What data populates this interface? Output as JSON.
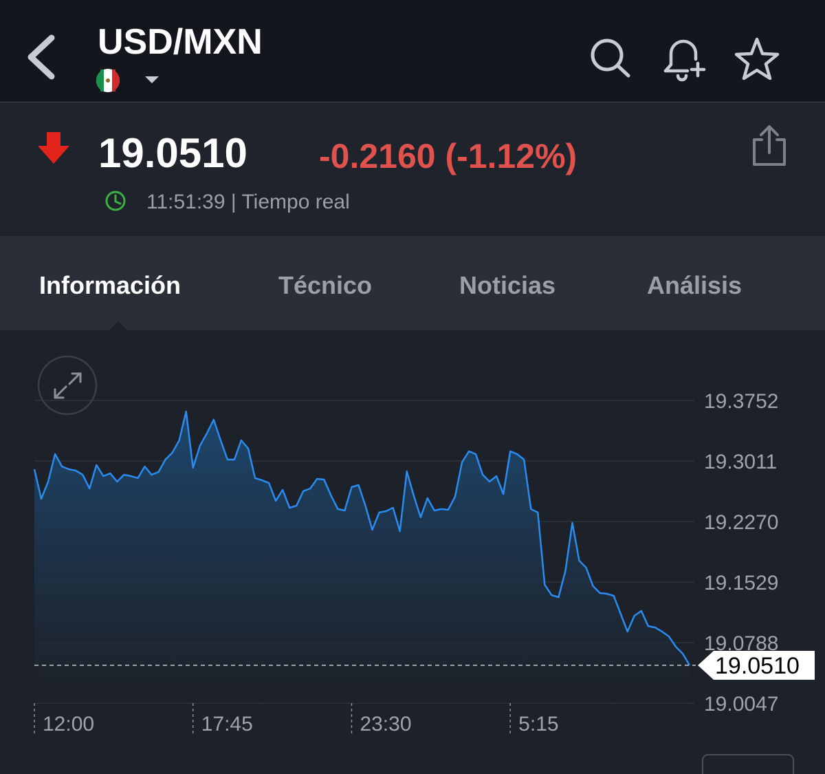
{
  "header": {
    "title": "USD/MXN"
  },
  "quote": {
    "price": "19.0510",
    "change": "-0.2160 (-1.12%)",
    "time": "11:51:39 | Tiempo real"
  },
  "tabs": [
    "Información",
    "Técnico",
    "Noticias",
    "Análisis"
  ],
  "chart_data": {
    "type": "area",
    "categories": [
      "12:00",
      null,
      null,
      null,
      null,
      null,
      null,
      null,
      null,
      null,
      null,
      null,
      null,
      null,
      null,
      null,
      null,
      null,
      null,
      null,
      null,
      null,
      null,
      "17:45",
      null,
      null,
      null,
      null,
      null,
      null,
      null,
      null,
      null,
      null,
      null,
      null,
      null,
      null,
      null,
      null,
      null,
      null,
      null,
      null,
      null,
      null,
      "23:30",
      null,
      null,
      null,
      null,
      null,
      null,
      null,
      null,
      null,
      null,
      null,
      null,
      null,
      null,
      null,
      null,
      null,
      null,
      null,
      null,
      null,
      null,
      "5:15",
      null,
      null,
      null,
      null,
      null,
      null,
      null,
      null,
      null,
      null,
      null,
      null,
      null,
      null,
      null,
      null,
      null,
      null,
      null,
      null,
      null,
      null,
      null,
      null,
      null,
      null
    ],
    "values": [
      19.291,
      19.2548,
      19.2758,
      19.3095,
      19.2944,
      19.291,
      19.2893,
      19.2843,
      19.2674,
      19.2961,
      19.2826,
      19.2859,
      19.2758,
      19.2843,
      19.2826,
      19.2801,
      19.2944,
      19.2843,
      19.2876,
      19.3028,
      19.3112,
      19.3264,
      19.3617,
      19.2927,
      19.3196,
      19.3348,
      19.3516,
      19.3264,
      19.3028,
      19.3028,
      19.3264,
      19.3163,
      19.2801,
      19.2775,
      19.2742,
      19.2523,
      19.2657,
      19.2438,
      19.2464,
      19.2641,
      19.2674,
      19.2792,
      19.2784,
      19.259,
      19.2422,
      19.2405,
      19.2691,
      19.2716,
      19.2464,
      19.2169,
      19.238,
      19.2396,
      19.2438,
      19.2152,
      19.2885,
      19.259,
      19.2321,
      19.2556,
      19.2405,
      19.2422,
      19.2413,
      19.2573,
      19.2994,
      19.3129,
      19.3095,
      19.2843,
      19.2758,
      19.2826,
      19.2607,
      19.3129,
      19.3095,
      19.3028,
      19.2422,
      19.238,
      19.1495,
      19.1369,
      19.1344,
      19.1664,
      19.2253,
      19.179,
      19.1706,
      19.1479,
      19.1394,
      19.1386,
      19.1361,
      19.1142,
      19.0923,
      19.1116,
      19.1175,
      19.099,
      19.0973,
      19.0923,
      19.0864,
      19.0738,
      19.0653,
      19.051
    ],
    "color": "#2a8cf0",
    "ylim": [
      19.0047,
      19.3752
    ],
    "yticks": [
      19.0047,
      19.0788,
      19.1529,
      {
        "value": 19.227,
        "label": "19.2270"
      },
      19.3011,
      19.3752
    ],
    "grid": true
  }
}
